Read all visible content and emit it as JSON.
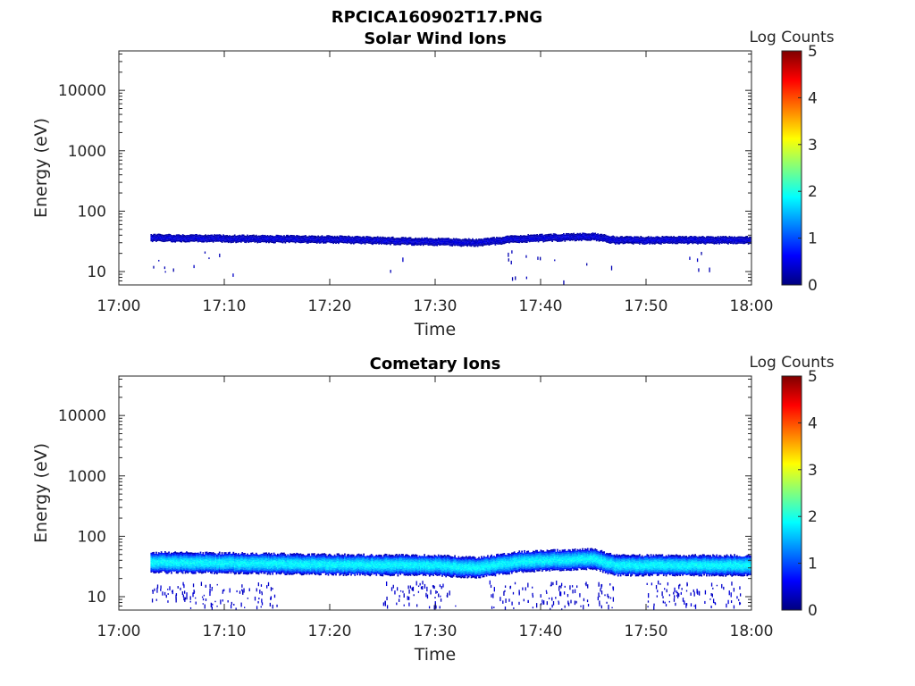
{
  "figure_title": "RPCICA160902T17.PNG",
  "colormap": [
    "#00007f",
    "#0000ff",
    "#007fff",
    "#00ffff",
    "#7fff7f",
    "#ffff00",
    "#ff7f00",
    "#ff0000",
    "#7f0000"
  ],
  "chart_data": [
    {
      "type": "heatmap",
      "title": "Solar Wind Ions",
      "xlabel": "Time",
      "ylabel": "Energy (eV)",
      "xlim": [
        "17:00",
        "18:00"
      ],
      "xticks": [
        "17:00",
        "17:10",
        "17:20",
        "17:30",
        "17:40",
        "17:50",
        "18:00"
      ],
      "ylim": [
        6,
        45000
      ],
      "yscale": "log",
      "yticks": [
        10,
        100,
        1000,
        10000
      ],
      "yticklabels": [
        "10",
        "100",
        "1000",
        "10000"
      ],
      "colorbar": {
        "label": "Log Counts",
        "min": 0,
        "max": 5,
        "ticks": [
          "0",
          "1",
          "2",
          "3",
          "4",
          "5"
        ]
      },
      "data_start": "17:03",
      "data_end": "18:00",
      "band": {
        "description": "narrow ion band",
        "center_energy_eV": [
          [
            3,
            36
          ],
          [
            10,
            35
          ],
          [
            20,
            34
          ],
          [
            30,
            31
          ],
          [
            34,
            30
          ],
          [
            38,
            35
          ],
          [
            45,
            38
          ],
          [
            47,
            33
          ],
          [
            60,
            33
          ]
        ],
        "half_width_factor": 1.15,
        "peak_log_counts": 0.4
      },
      "sparse_events": {
        "energy_range_eV": [
          6,
          20
        ],
        "time_ranges": [
          [
            "17:03",
            "17:11"
          ],
          [
            "17:25",
            "17:27"
          ],
          [
            "17:35",
            "17:47"
          ],
          [
            "17:53",
            "17:57"
          ]
        ],
        "log_counts": 0.2
      }
    },
    {
      "type": "heatmap",
      "title": "Cometary Ions",
      "xlabel": "Time",
      "ylabel": "Energy (eV)",
      "xlim": [
        "17:00",
        "18:00"
      ],
      "xticks": [
        "17:00",
        "17:10",
        "17:20",
        "17:30",
        "17:40",
        "17:50",
        "18:00"
      ],
      "ylim": [
        6,
        45000
      ],
      "yscale": "log",
      "yticks": [
        10,
        100,
        1000,
        10000
      ],
      "yticklabels": [
        "10",
        "100",
        "1000",
        "10000"
      ],
      "colorbar": {
        "label": "Log Counts",
        "min": 0,
        "max": 5,
        "ticks": [
          "0",
          "1",
          "2",
          "3",
          "4",
          "5"
        ]
      },
      "data_start": "17:03",
      "data_end": "18:00",
      "band": {
        "description": "broad ion band",
        "center_energy_eV": [
          [
            3,
            37
          ],
          [
            10,
            36
          ],
          [
            20,
            34
          ],
          [
            30,
            33
          ],
          [
            34,
            30
          ],
          [
            38,
            38
          ],
          [
            45,
            42
          ],
          [
            47,
            33
          ],
          [
            60,
            33
          ]
        ],
        "half_width_factor": 1.5,
        "peak_log_counts": 1.8
      },
      "sparse_events": {
        "energy_range_eV": [
          6,
          16
        ],
        "time_ranges": [
          [
            "17:03",
            "17:15"
          ],
          [
            "17:25",
            "17:32"
          ],
          [
            "17:35",
            "17:47"
          ],
          [
            "17:50",
            "17:59"
          ]
        ],
        "log_counts": 0.3
      }
    }
  ]
}
